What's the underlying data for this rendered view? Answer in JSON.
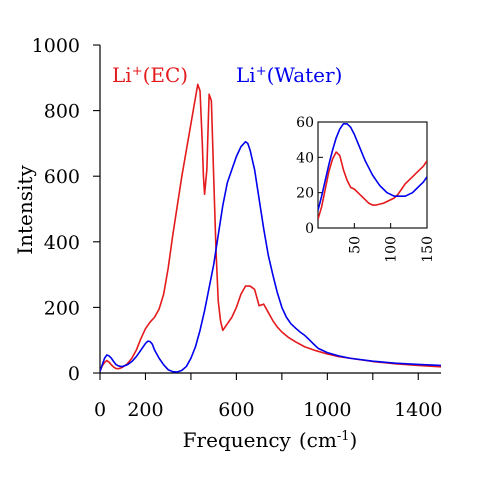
{
  "chart_data": {
    "type": "line",
    "xlabel": "Frequency",
    "xlabel_unit": "(cm",
    "xlabel_unit_sup": "-1",
    "xlabel_unit_close": ")",
    "ylabel": "Intensity",
    "xlim": [
      0,
      1500
    ],
    "ylim": [
      0,
      1000
    ],
    "x_ticks": [
      0,
      200,
      600,
      1000,
      1400
    ],
    "x_tick_labels": [
      "0",
      "200",
      "600",
      "1000",
      "1400"
    ],
    "x_minor_ticks": [
      400,
      800,
      1200
    ],
    "y_ticks": [
      0,
      200,
      400,
      600,
      800,
      1000
    ],
    "y_tick_labels": [
      "0",
      "200",
      "400",
      "600",
      "800",
      "1000"
    ],
    "grid": false,
    "legend": "none (series labelled inline at top)",
    "series": [
      {
        "name": "Li⁺(EC)",
        "label_base": "Li",
        "label_sup": "+",
        "label_rest": "(EC)",
        "color": "#e41a1c",
        "points": [
          [
            0,
            5
          ],
          [
            10,
            22
          ],
          [
            20,
            32
          ],
          [
            30,
            38
          ],
          [
            40,
            33
          ],
          [
            50,
            25
          ],
          [
            60,
            18
          ],
          [
            70,
            14
          ],
          [
            80,
            13
          ],
          [
            90,
            15
          ],
          [
            100,
            18
          ],
          [
            120,
            28
          ],
          [
            140,
            45
          ],
          [
            160,
            70
          ],
          [
            180,
            105
          ],
          [
            200,
            135
          ],
          [
            220,
            155
          ],
          [
            240,
            170
          ],
          [
            260,
            195
          ],
          [
            280,
            240
          ],
          [
            300,
            320
          ],
          [
            320,
            420
          ],
          [
            340,
            510
          ],
          [
            360,
            600
          ],
          [
            380,
            680
          ],
          [
            400,
            760
          ],
          [
            420,
            840
          ],
          [
            430,
            880
          ],
          [
            440,
            860
          ],
          [
            450,
            700
          ],
          [
            455,
            600
          ],
          [
            460,
            545
          ],
          [
            470,
            620
          ],
          [
            480,
            850
          ],
          [
            490,
            830
          ],
          [
            500,
            600
          ],
          [
            510,
            380
          ],
          [
            520,
            220
          ],
          [
            530,
            160
          ],
          [
            540,
            130
          ],
          [
            560,
            150
          ],
          [
            580,
            170
          ],
          [
            600,
            200
          ],
          [
            620,
            240
          ],
          [
            640,
            265
          ],
          [
            660,
            265
          ],
          [
            680,
            255
          ],
          [
            700,
            205
          ],
          [
            720,
            210
          ],
          [
            740,
            185
          ],
          [
            760,
            160
          ],
          [
            780,
            140
          ],
          [
            800,
            125
          ],
          [
            830,
            108
          ],
          [
            860,
            95
          ],
          [
            900,
            80
          ],
          [
            950,
            68
          ],
          [
            1000,
            58
          ],
          [
            1050,
            50
          ],
          [
            1100,
            45
          ],
          [
            1200,
            35
          ],
          [
            1300,
            28
          ],
          [
            1400,
            23
          ],
          [
            1500,
            19
          ]
        ]
      },
      {
        "name": "Li⁺(Water)",
        "label_base": "Li",
        "label_sup": "+",
        "label_rest": "(Water)",
        "color": "#0000ee",
        "points": [
          [
            0,
            5
          ],
          [
            10,
            25
          ],
          [
            20,
            45
          ],
          [
            30,
            55
          ],
          [
            40,
            52
          ],
          [
            50,
            45
          ],
          [
            60,
            35
          ],
          [
            70,
            26
          ],
          [
            80,
            22
          ],
          [
            90,
            20
          ],
          [
            100,
            20
          ],
          [
            120,
            25
          ],
          [
            140,
            35
          ],
          [
            160,
            50
          ],
          [
            180,
            70
          ],
          [
            200,
            90
          ],
          [
            210,
            97
          ],
          [
            220,
            96
          ],
          [
            230,
            88
          ],
          [
            240,
            70
          ],
          [
            260,
            45
          ],
          [
            280,
            25
          ],
          [
            300,
            10
          ],
          [
            320,
            4
          ],
          [
            340,
            3
          ],
          [
            360,
            8
          ],
          [
            380,
            20
          ],
          [
            400,
            45
          ],
          [
            420,
            80
          ],
          [
            440,
            130
          ],
          [
            460,
            190
          ],
          [
            480,
            260
          ],
          [
            500,
            330
          ],
          [
            520,
            420
          ],
          [
            540,
            510
          ],
          [
            560,
            580
          ],
          [
            580,
            620
          ],
          [
            600,
            660
          ],
          [
            620,
            690
          ],
          [
            640,
            705
          ],
          [
            650,
            700
          ],
          [
            660,
            680
          ],
          [
            680,
            620
          ],
          [
            700,
            530
          ],
          [
            720,
            440
          ],
          [
            740,
            360
          ],
          [
            760,
            300
          ],
          [
            780,
            245
          ],
          [
            800,
            200
          ],
          [
            820,
            170
          ],
          [
            840,
            150
          ],
          [
            860,
            137
          ],
          [
            880,
            125
          ],
          [
            900,
            115
          ],
          [
            920,
            102
          ],
          [
            940,
            88
          ],
          [
            960,
            75
          ],
          [
            1000,
            62
          ],
          [
            1050,
            52
          ],
          [
            1100,
            45
          ],
          [
            1200,
            36
          ],
          [
            1300,
            30
          ],
          [
            1400,
            26
          ],
          [
            1500,
            23
          ]
        ]
      }
    ],
    "inset": {
      "xlim": [
        0,
        150
      ],
      "ylim": [
        0,
        60
      ],
      "x_ticks": [
        50,
        100,
        150
      ],
      "x_tick_labels": [
        "50",
        "100",
        "150"
      ],
      "y_ticks": [
        0,
        20,
        40,
        60
      ],
      "y_tick_labels": [
        "0",
        "20",
        "40",
        "60"
      ],
      "series": [
        {
          "name": "Li⁺(EC)",
          "color": "#e41a1c",
          "points": [
            [
              0,
              5
            ],
            [
              5,
              12
            ],
            [
              10,
              22
            ],
            [
              15,
              32
            ],
            [
              20,
              39
            ],
            [
              25,
              43
            ],
            [
              30,
              41
            ],
            [
              35,
              33
            ],
            [
              40,
              27
            ],
            [
              45,
              23
            ],
            [
              50,
              22
            ],
            [
              55,
              20
            ],
            [
              60,
              18
            ],
            [
              65,
              16
            ],
            [
              70,
              14
            ],
            [
              75,
              13
            ],
            [
              80,
              13
            ],
            [
              85,
              13.5
            ],
            [
              90,
              14
            ],
            [
              95,
              15
            ],
            [
              100,
              16
            ],
            [
              105,
              17
            ],
            [
              110,
              19
            ],
            [
              115,
              22
            ],
            [
              120,
              25
            ],
            [
              125,
              27
            ],
            [
              130,
              29
            ],
            [
              135,
              31
            ],
            [
              140,
              33
            ],
            [
              145,
              35
            ],
            [
              150,
              38
            ]
          ]
        },
        {
          "name": "Li⁺(Water)",
          "color": "#0000ee",
          "points": [
            [
              0,
              10
            ],
            [
              5,
              18
            ],
            [
              10,
              27
            ],
            [
              15,
              36
            ],
            [
              20,
              44
            ],
            [
              25,
              51
            ],
            [
              30,
              56
            ],
            [
              35,
              59
            ],
            [
              40,
              59
            ],
            [
              45,
              57
            ],
            [
              50,
              53
            ],
            [
              55,
              48
            ],
            [
              60,
              43
            ],
            [
              65,
              38
            ],
            [
              70,
              34
            ],
            [
              75,
              30
            ],
            [
              80,
              27
            ],
            [
              85,
              24
            ],
            [
              90,
              22
            ],
            [
              95,
              20
            ],
            [
              100,
              19
            ],
            [
              105,
              18
            ],
            [
              110,
              18
            ],
            [
              115,
              18
            ],
            [
              120,
              18
            ],
            [
              125,
              19
            ],
            [
              130,
              20
            ],
            [
              135,
              22
            ],
            [
              140,
              24
            ],
            [
              145,
              26
            ],
            [
              150,
              29
            ]
          ]
        }
      ]
    }
  }
}
